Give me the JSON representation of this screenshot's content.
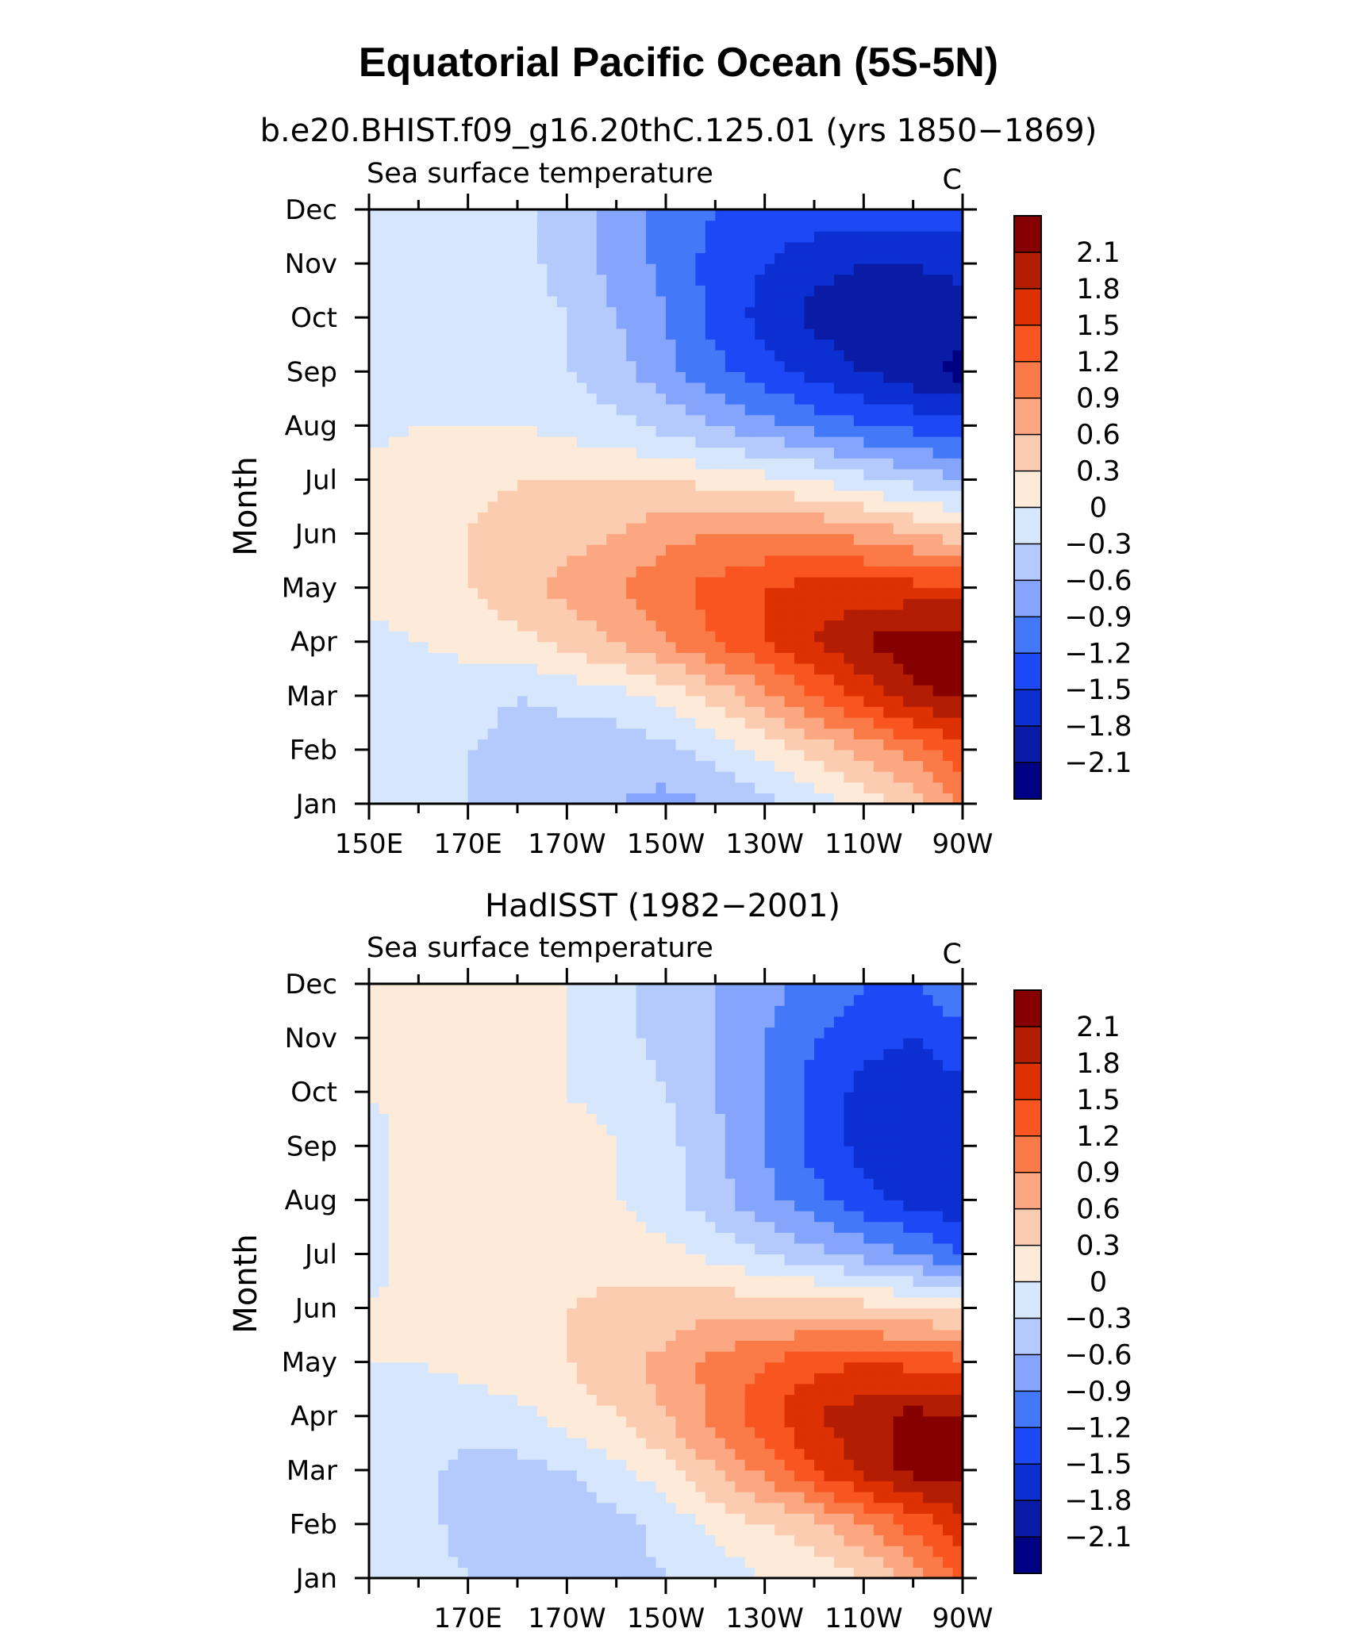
{
  "figure_title": "Equatorial Pacific Ocean (5S-5N)",
  "chart_data": [
    {
      "type": "heatmap",
      "subtitle": "b.e20.BHIST.f09_g16.20thC.125.01 (yrs 1850−1869)",
      "left_label": "Sea surface temperature",
      "units": "C",
      "ylabel": "Month",
      "x_tick_labels": [
        "150E",
        "170E",
        "170W",
        "150W",
        "130W",
        "110W",
        "90W"
      ],
      "x_lon_range": [
        "150E",
        "90W"
      ],
      "y": [
        "Jan",
        "Feb",
        "Mar",
        "Apr",
        "May",
        "Jun",
        "Jul",
        "Aug",
        "Sep",
        "Oct",
        "Nov",
        "Dec"
      ],
      "x": [
        "150E",
        "160E",
        "170E",
        "180",
        "170W",
        "160W",
        "150W",
        "140W",
        "130W",
        "120W",
        "110W",
        "100W",
        "90W"
      ],
      "z": [
        [
          -0.2,
          -0.2,
          -0.3,
          -0.3,
          -0.4,
          -0.6,
          -0.7,
          -0.6,
          -0.4,
          -0.2,
          0.1,
          0.4,
          1.0
        ],
        [
          -0.2,
          -0.2,
          -0.3,
          -0.4,
          -0.5,
          -0.5,
          -0.4,
          -0.2,
          0.1,
          0.4,
          0.7,
          1.0,
          1.4
        ],
        [
          -0.2,
          -0.2,
          -0.2,
          -0.3,
          -0.2,
          -0.1,
          0.1,
          0.4,
          0.8,
          1.2,
          1.6,
          2.0,
          2.2
        ],
        [
          -0.1,
          0.0,
          0.1,
          0.2,
          0.4,
          0.6,
          0.9,
          1.2,
          1.5,
          1.8,
          2.1,
          2.3,
          2.3
        ],
        [
          0.1,
          0.2,
          0.3,
          0.5,
          0.7,
          0.9,
          1.1,
          1.3,
          1.5,
          1.6,
          1.6,
          1.6,
          1.6
        ],
        [
          0.1,
          0.2,
          0.3,
          0.4,
          0.5,
          0.6,
          0.8,
          0.9,
          0.9,
          0.9,
          0.8,
          0.6,
          0.4
        ],
        [
          0.1,
          0.2,
          0.2,
          0.3,
          0.3,
          0.3,
          0.3,
          0.2,
          0.1,
          0.0,
          -0.2,
          -0.4,
          -0.6
        ],
        [
          -0.1,
          0.0,
          0.0,
          0.0,
          -0.1,
          -0.2,
          -0.4,
          -0.6,
          -0.8,
          -1.0,
          -1.2,
          -1.3,
          -1.4
        ],
        [
          -0.1,
          -0.1,
          -0.1,
          -0.2,
          -0.3,
          -0.5,
          -0.8,
          -1.1,
          -1.4,
          -1.6,
          -1.8,
          -2.0,
          -2.2
        ],
        [
          -0.1,
          -0.1,
          -0.1,
          -0.2,
          -0.3,
          -0.6,
          -0.9,
          -1.3,
          -1.6,
          -1.9,
          -2.0,
          -2.0,
          -2.0
        ],
        [
          -0.1,
          -0.1,
          -0.1,
          -0.2,
          -0.4,
          -0.7,
          -1.0,
          -1.3,
          -1.5,
          -1.7,
          -1.8,
          -1.8,
          -1.7
        ],
        [
          0.0,
          -0.1,
          -0.1,
          -0.2,
          -0.4,
          -0.7,
          -1.0,
          -1.2,
          -1.3,
          -1.3,
          -1.3,
          -1.3,
          -1.3
        ]
      ]
    },
    {
      "type": "heatmap",
      "subtitle": "HadISST (1982−2001)",
      "left_label": "Sea surface temperature",
      "units": "C",
      "ylabel": "Month",
      "x_tick_labels": [
        "170E",
        "170W",
        "150W",
        "130W",
        "110W",
        "90W"
      ],
      "x_lon_range": [
        "150E",
        "90W"
      ],
      "y": [
        "Jan",
        "Feb",
        "Mar",
        "Apr",
        "May",
        "Jun",
        "Jul",
        "Aug",
        "Sep",
        "Oct",
        "Nov",
        "Dec"
      ],
      "x": [
        "150E",
        "160E",
        "170E",
        "180",
        "170W",
        "160W",
        "150W",
        "140W",
        "130W",
        "120W",
        "110W",
        "100W",
        "90W"
      ],
      "z": [
        [
          -0.1,
          -0.2,
          -0.3,
          -0.4,
          -0.4,
          -0.4,
          -0.3,
          -0.2,
          0.0,
          0.1,
          0.3,
          0.7,
          1.2
        ],
        [
          -0.1,
          -0.2,
          -0.4,
          -0.5,
          -0.5,
          -0.4,
          -0.2,
          0.1,
          0.3,
          0.5,
          0.9,
          1.3,
          1.7
        ],
        [
          -0.1,
          -0.2,
          -0.4,
          -0.4,
          -0.3,
          -0.1,
          0.2,
          0.6,
          1.0,
          1.5,
          1.9,
          2.2,
          2.2
        ],
        [
          -0.1,
          -0.1,
          -0.2,
          -0.1,
          0.1,
          0.3,
          0.6,
          1.0,
          1.4,
          1.8,
          2.0,
          2.2,
          2.1
        ],
        [
          0.0,
          0.0,
          0.1,
          0.2,
          0.3,
          0.5,
          0.7,
          1.0,
          1.2,
          1.4,
          1.5,
          1.4,
          1.3
        ],
        [
          0.0,
          0.1,
          0.1,
          0.2,
          0.3,
          0.4,
          0.4,
          0.5,
          0.5,
          0.5,
          0.4,
          0.3,
          0.2
        ],
        [
          -0.1,
          0.1,
          0.1,
          0.1,
          0.1,
          0.2,
          0.1,
          -0.1,
          -0.3,
          -0.5,
          -0.7,
          -0.9,
          -1.2
        ],
        [
          -0.1,
          0.1,
          0.2,
          0.1,
          0.1,
          0.0,
          -0.2,
          -0.5,
          -0.8,
          -1.1,
          -1.4,
          -1.6,
          -1.7
        ],
        [
          -0.1,
          0.1,
          0.2,
          0.3,
          0.1,
          0.0,
          -0.2,
          -0.5,
          -0.9,
          -1.3,
          -1.6,
          -1.8,
          -1.7
        ],
        [
          0.0,
          0.1,
          0.1,
          0.1,
          0.0,
          -0.1,
          -0.3,
          -0.6,
          -0.9,
          -1.3,
          -1.6,
          -1.7,
          -1.6
        ],
        [
          0.0,
          0.1,
          0.1,
          0.1,
          0.0,
          -0.2,
          -0.4,
          -0.6,
          -0.9,
          -1.2,
          -1.4,
          -1.5,
          -1.3
        ],
        [
          0.0,
          0.1,
          0.1,
          0.1,
          0.0,
          -0.2,
          -0.4,
          -0.6,
          -0.8,
          -1.0,
          -1.2,
          -1.2,
          -0.9
        ]
      ]
    }
  ],
  "colorbar": {
    "labels": [
      "2.1",
      "1.8",
      "1.5",
      "1.2",
      "0.9",
      "0.6",
      "0.3",
      "0",
      "−0.3",
      "−0.6",
      "−0.9",
      "−1.2",
      "−1.5",
      "−1.8",
      "−2.1"
    ],
    "levels": [
      -2.1,
      -1.8,
      -1.5,
      -1.2,
      -0.9,
      -0.6,
      -0.3,
      0,
      0.3,
      0.6,
      0.9,
      1.2,
      1.5,
      1.8,
      2.1
    ],
    "colors": [
      "#000084",
      "#0a1ca6",
      "#0c2fd2",
      "#1d48f5",
      "#4378f8",
      "#84a5fb",
      "#b4cafc",
      "#d6e7fd",
      "#feead8",
      "#fcccb0",
      "#fba781",
      "#fa7b47",
      "#f85520",
      "#dd3003",
      "#b21d03",
      "#860000"
    ]
  }
}
